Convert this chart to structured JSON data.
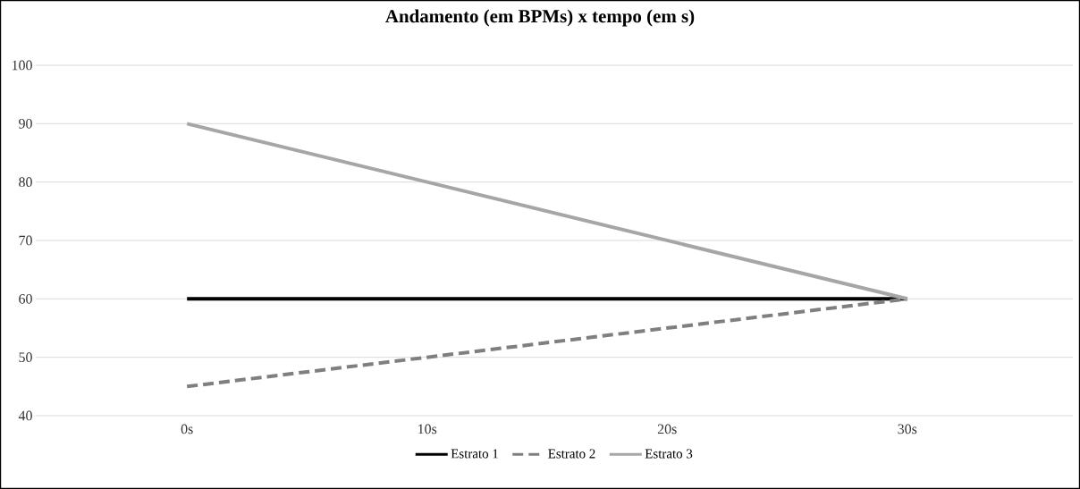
{
  "chart_data": {
    "type": "line",
    "title": "Andamento (em BPMs) x tempo (em s)",
    "categories": [
      "0s",
      "10s",
      "20s",
      "30s"
    ],
    "series": [
      {
        "name": "Estrato 1",
        "color": "#000000",
        "line_style": "solid",
        "values": [
          60,
          60,
          60,
          60
        ]
      },
      {
        "name": "Estrato 2",
        "color": "#7f7f7f",
        "line_style": "dashed",
        "values": [
          45,
          50,
          55,
          60
        ]
      },
      {
        "name": "Estrato 3",
        "color": "#a6a6a6",
        "line_style": "solid",
        "values": [
          90,
          80,
          70,
          60
        ]
      }
    ],
    "ylim": [
      40,
      100
    ],
    "yticks": [
      40,
      50,
      60,
      70,
      80,
      90,
      100
    ],
    "grid": "y",
    "legend": "bottom"
  }
}
